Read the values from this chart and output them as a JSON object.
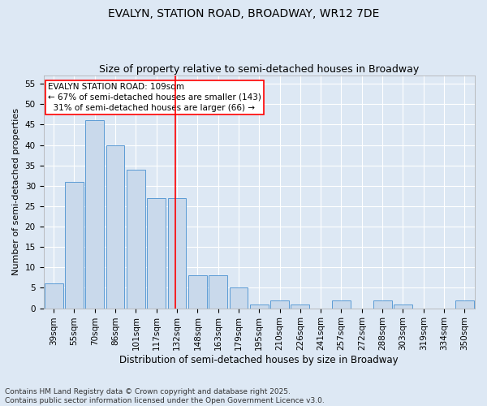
{
  "title1": "EVALYN, STATION ROAD, BROADWAY, WR12 7DE",
  "title2": "Size of property relative to semi-detached houses in Broadway",
  "xlabel": "Distribution of semi-detached houses by size in Broadway",
  "ylabel": "Number of semi-detached properties",
  "categories": [
    "39sqm",
    "55sqm",
    "70sqm",
    "86sqm",
    "101sqm",
    "117sqm",
    "132sqm",
    "148sqm",
    "163sqm",
    "179sqm",
    "195sqm",
    "210sqm",
    "226sqm",
    "241sqm",
    "257sqm",
    "272sqm",
    "288sqm",
    "303sqm",
    "319sqm",
    "334sqm",
    "350sqm"
  ],
  "values": [
    6,
    31,
    46,
    40,
    34,
    27,
    27,
    8,
    8,
    5,
    1,
    2,
    1,
    0,
    2,
    0,
    2,
    1,
    0,
    0,
    2
  ],
  "bar_color": "#c9d9eb",
  "bar_edge_color": "#5b9bd5",
  "red_line_index": 5.93,
  "annotation_lines": [
    "EVALYN STATION ROAD: 109sqm",
    "← 67% of semi-detached houses are smaller (143)",
    "  31% of semi-detached houses are larger (66) →"
  ],
  "ylim": [
    0,
    57
  ],
  "yticks": [
    0,
    5,
    10,
    15,
    20,
    25,
    30,
    35,
    40,
    45,
    50,
    55
  ],
  "background_color": "#dde8f4",
  "plot_background": "#dde8f4",
  "grid_color": "#ffffff",
  "footnote": "Contains HM Land Registry data © Crown copyright and database right 2025.\nContains public sector information licensed under the Open Government Licence v3.0.",
  "title1_fontsize": 10,
  "title2_fontsize": 9,
  "xlabel_fontsize": 8.5,
  "ylabel_fontsize": 8,
  "tick_fontsize": 7.5,
  "annotation_fontsize": 7.5,
  "footnote_fontsize": 6.5
}
